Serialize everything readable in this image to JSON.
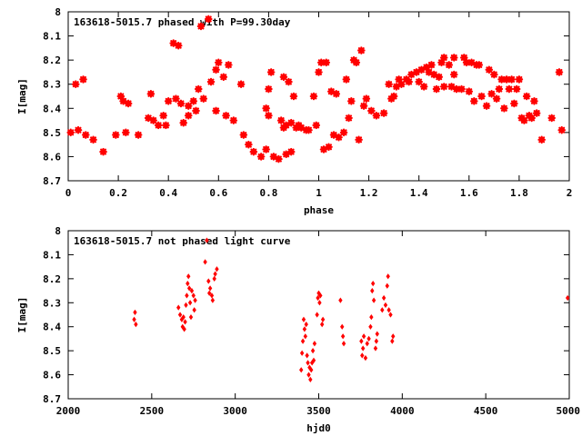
{
  "chart_data": [
    {
      "type": "scatter",
      "title": "163618-5015.7 phased with P=99.30day",
      "xlabel": "phase",
      "ylabel": "I[mag]",
      "xlim": [
        0,
        2
      ],
      "ylim": [
        8.7,
        8
      ],
      "y_reversed": true,
      "xticks": [
        0,
        0.2,
        0.4,
        0.6,
        0.8,
        1,
        1.2,
        1.4,
        1.6,
        1.8,
        2
      ],
      "xtick_labels": [
        "0",
        "0.2",
        "0.4",
        "0.6",
        "0.8",
        "1",
        "1.2",
        "1.4",
        "1.6",
        "1.8",
        "2"
      ],
      "yticks": [
        8,
        8.1,
        8.2,
        8.3,
        8.4,
        8.5,
        8.6,
        8.7
      ],
      "ytick_labels": [
        "8",
        "8.1",
        "8.2",
        "8.3",
        "8.4",
        "8.5",
        "8.6",
        "8.7"
      ],
      "grid": false,
      "marker_color": "#ff0000",
      "marker": "star",
      "points": [
        [
          0.01,
          8.5
        ],
        [
          0.03,
          8.3
        ],
        [
          0.04,
          8.49
        ],
        [
          0.06,
          8.28
        ],
        [
          0.07,
          8.51
        ],
        [
          0.1,
          8.53
        ],
        [
          0.14,
          8.58
        ],
        [
          0.19,
          8.51
        ],
        [
          0.21,
          8.35
        ],
        [
          0.22,
          8.37
        ],
        [
          0.23,
          8.5
        ],
        [
          0.24,
          8.38
        ],
        [
          0.28,
          8.51
        ],
        [
          0.32,
          8.44
        ],
        [
          0.33,
          8.34
        ],
        [
          0.34,
          8.45
        ],
        [
          0.36,
          8.47
        ],
        [
          0.38,
          8.43
        ],
        [
          0.39,
          8.47
        ],
        [
          0.4,
          8.37
        ],
        [
          0.42,
          8.13
        ],
        [
          0.43,
          8.36
        ],
        [
          0.44,
          8.14
        ],
        [
          0.45,
          8.38
        ],
        [
          0.46,
          8.46
        ],
        [
          0.48,
          8.39
        ],
        [
          0.48,
          8.43
        ],
        [
          0.5,
          8.37
        ],
        [
          0.51,
          8.41
        ],
        [
          0.52,
          8.32
        ],
        [
          0.53,
          8.06
        ],
        [
          0.54,
          8.36
        ],
        [
          0.56,
          8.03
        ],
        [
          0.57,
          8.29
        ],
        [
          0.59,
          8.24
        ],
        [
          0.59,
          8.41
        ],
        [
          0.6,
          8.21
        ],
        [
          0.62,
          8.27
        ],
        [
          0.63,
          8.43
        ],
        [
          0.64,
          8.22
        ],
        [
          0.66,
          8.45
        ],
        [
          0.69,
          8.3
        ],
        [
          0.7,
          8.51
        ],
        [
          0.72,
          8.55
        ],
        [
          0.74,
          8.58
        ],
        [
          0.77,
          8.6
        ],
        [
          0.79,
          8.4
        ],
        [
          0.79,
          8.57
        ],
        [
          0.8,
          8.43
        ],
        [
          0.8,
          8.32
        ],
        [
          0.81,
          8.25
        ],
        [
          0.82,
          8.6
        ],
        [
          0.84,
          8.61
        ],
        [
          0.85,
          8.45
        ],
        [
          0.86,
          8.27
        ],
        [
          0.86,
          8.48
        ],
        [
          0.87,
          8.47
        ],
        [
          0.87,
          8.59
        ],
        [
          0.88,
          8.29
        ],
        [
          0.89,
          8.46
        ],
        [
          0.89,
          8.58
        ],
        [
          0.9,
          8.35
        ],
        [
          0.91,
          8.48
        ],
        [
          0.92,
          8.47
        ],
        [
          0.93,
          8.48
        ],
        [
          0.95,
          8.49
        ],
        [
          0.96,
          8.49
        ],
        [
          0.98,
          8.35
        ],
        [
          0.99,
          8.47
        ],
        [
          1.0,
          8.25
        ],
        [
          1.01,
          8.21
        ],
        [
          1.02,
          8.57
        ],
        [
          1.03,
          8.21
        ],
        [
          1.04,
          8.56
        ],
        [
          1.05,
          8.33
        ],
        [
          1.06,
          8.51
        ],
        [
          1.07,
          8.34
        ],
        [
          1.08,
          8.52
        ],
        [
          1.1,
          8.5
        ],
        [
          1.11,
          8.28
        ],
        [
          1.12,
          8.44
        ],
        [
          1.13,
          8.37
        ],
        [
          1.14,
          8.2
        ],
        [
          1.15,
          8.21
        ],
        [
          1.16,
          8.53
        ],
        [
          1.17,
          8.16
        ],
        [
          1.18,
          8.39
        ],
        [
          1.19,
          8.36
        ],
        [
          1.21,
          8.41
        ],
        [
          1.23,
          8.43
        ],
        [
          1.26,
          8.42
        ],
        [
          1.28,
          8.3
        ],
        [
          1.29,
          8.36
        ],
        [
          1.3,
          8.35
        ],
        [
          1.31,
          8.31
        ],
        [
          1.32,
          8.28
        ],
        [
          1.33,
          8.3
        ],
        [
          1.35,
          8.28
        ],
        [
          1.36,
          8.29
        ],
        [
          1.37,
          8.26
        ],
        [
          1.39,
          8.25
        ],
        [
          1.4,
          8.29
        ],
        [
          1.41,
          8.24
        ],
        [
          1.42,
          8.31
        ],
        [
          1.43,
          8.23
        ],
        [
          1.44,
          8.25
        ],
        [
          1.45,
          8.22
        ],
        [
          1.46,
          8.26
        ],
        [
          1.47,
          8.32
        ],
        [
          1.48,
          8.27
        ],
        [
          1.49,
          8.21
        ],
        [
          1.5,
          8.31
        ],
        [
          1.5,
          8.19
        ],
        [
          1.52,
          8.22
        ],
        [
          1.53,
          8.31
        ],
        [
          1.54,
          8.19
        ],
        [
          1.54,
          8.26
        ],
        [
          1.55,
          8.32
        ],
        [
          1.57,
          8.32
        ],
        [
          1.58,
          8.19
        ],
        [
          1.59,
          8.21
        ],
        [
          1.6,
          8.33
        ],
        [
          1.61,
          8.21
        ],
        [
          1.62,
          8.37
        ],
        [
          1.63,
          8.22
        ],
        [
          1.64,
          8.22
        ],
        [
          1.65,
          8.35
        ],
        [
          1.67,
          8.39
        ],
        [
          1.68,
          8.24
        ],
        [
          1.69,
          8.34
        ],
        [
          1.7,
          8.26
        ],
        [
          1.71,
          8.36
        ],
        [
          1.72,
          8.32
        ],
        [
          1.73,
          8.28
        ],
        [
          1.74,
          8.4
        ],
        [
          1.75,
          8.28
        ],
        [
          1.76,
          8.32
        ],
        [
          1.77,
          8.28
        ],
        [
          1.78,
          8.38
        ],
        [
          1.79,
          8.32
        ],
        [
          1.8,
          8.28
        ],
        [
          1.81,
          8.44
        ],
        [
          1.82,
          8.45
        ],
        [
          1.83,
          8.35
        ],
        [
          1.84,
          8.43
        ],
        [
          1.85,
          8.44
        ],
        [
          1.86,
          8.37
        ],
        [
          1.87,
          8.42
        ],
        [
          1.89,
          8.53
        ],
        [
          1.93,
          8.44
        ],
        [
          1.96,
          8.25
        ],
        [
          1.97,
          8.49
        ]
      ]
    },
    {
      "type": "scatter",
      "title": "163618-5015.7 not phased light curve",
      "xlabel": "hjd0",
      "ylabel": "I[mag]",
      "xlim": [
        2000,
        5000
      ],
      "ylim": [
        8.7,
        8
      ],
      "y_reversed": true,
      "xticks": [
        2000,
        2500,
        3000,
        3500,
        4000,
        4500,
        5000
      ],
      "xtick_labels": [
        "2000",
        "2500",
        "3000",
        "3500",
        "4000",
        "4500",
        "5000"
      ],
      "yticks": [
        8,
        8.1,
        8.2,
        8.3,
        8.4,
        8.5,
        8.6,
        8.7
      ],
      "ytick_labels": [
        "8",
        "8.1",
        "8.2",
        "8.3",
        "8.4",
        "8.5",
        "8.6",
        "8.7"
      ],
      "grid": false,
      "marker_color": "#ff0000",
      "marker": "diamond",
      "points": [
        [
          2395,
          8.37
        ],
        [
          2400,
          8.34
        ],
        [
          2405,
          8.39
        ],
        [
          2660,
          8.32
        ],
        [
          2670,
          8.35
        ],
        [
          2680,
          8.37
        ],
        [
          2685,
          8.4
        ],
        [
          2690,
          8.36
        ],
        [
          2695,
          8.41
        ],
        [
          2700,
          8.38
        ],
        [
          2705,
          8.31
        ],
        [
          2710,
          8.27
        ],
        [
          2715,
          8.22
        ],
        [
          2720,
          8.19
        ],
        [
          2725,
          8.24
        ],
        [
          2730,
          8.3
        ],
        [
          2735,
          8.36
        ],
        [
          2740,
          8.25
        ],
        [
          2750,
          8.27
        ],
        [
          2755,
          8.33
        ],
        [
          2760,
          8.29
        ],
        [
          2820,
          8.13
        ],
        [
          2830,
          8.04
        ],
        [
          2840,
          8.21
        ],
        [
          2845,
          8.26
        ],
        [
          2850,
          8.24
        ],
        [
          2860,
          8.27
        ],
        [
          2865,
          8.29
        ],
        [
          2875,
          8.2
        ],
        [
          2880,
          8.18
        ],
        [
          2890,
          8.16
        ],
        [
          3395,
          8.58
        ],
        [
          3400,
          8.51
        ],
        [
          3405,
          8.46
        ],
        [
          3410,
          8.37
        ],
        [
          3415,
          8.41
        ],
        [
          3420,
          8.44
        ],
        [
          3425,
          8.39
        ],
        [
          3430,
          8.52
        ],
        [
          3435,
          8.55
        ],
        [
          3440,
          8.6
        ],
        [
          3445,
          8.57
        ],
        [
          3450,
          8.62
        ],
        [
          3455,
          8.58
        ],
        [
          3460,
          8.55
        ],
        [
          3465,
          8.5
        ],
        [
          3470,
          8.54
        ],
        [
          3475,
          8.47
        ],
        [
          3490,
          8.35
        ],
        [
          3495,
          8.28
        ],
        [
          3500,
          8.26
        ],
        [
          3505,
          8.3
        ],
        [
          3510,
          8.27
        ],
        [
          3520,
          8.39
        ],
        [
          3525,
          8.37
        ],
        [
          3630,
          8.29
        ],
        [
          3640,
          8.4
        ],
        [
          3645,
          8.44
        ],
        [
          3650,
          8.47
        ],
        [
          3755,
          8.46
        ],
        [
          3760,
          8.52
        ],
        [
          3765,
          8.49
        ],
        [
          3770,
          8.44
        ],
        [
          3780,
          8.53
        ],
        [
          3790,
          8.47
        ],
        [
          3800,
          8.45
        ],
        [
          3810,
          8.4
        ],
        [
          3815,
          8.36
        ],
        [
          3820,
          8.25
        ],
        [
          3825,
          8.22
        ],
        [
          3830,
          8.29
        ],
        [
          3840,
          8.49
        ],
        [
          3845,
          8.46
        ],
        [
          3850,
          8.43
        ],
        [
          3880,
          8.33
        ],
        [
          3890,
          8.28
        ],
        [
          3900,
          8.31
        ],
        [
          3910,
          8.23
        ],
        [
          3915,
          8.19
        ],
        [
          3920,
          8.33
        ],
        [
          3930,
          8.35
        ],
        [
          3940,
          8.46
        ],
        [
          3945,
          8.44
        ],
        [
          4990,
          8.28
        ]
      ]
    }
  ]
}
